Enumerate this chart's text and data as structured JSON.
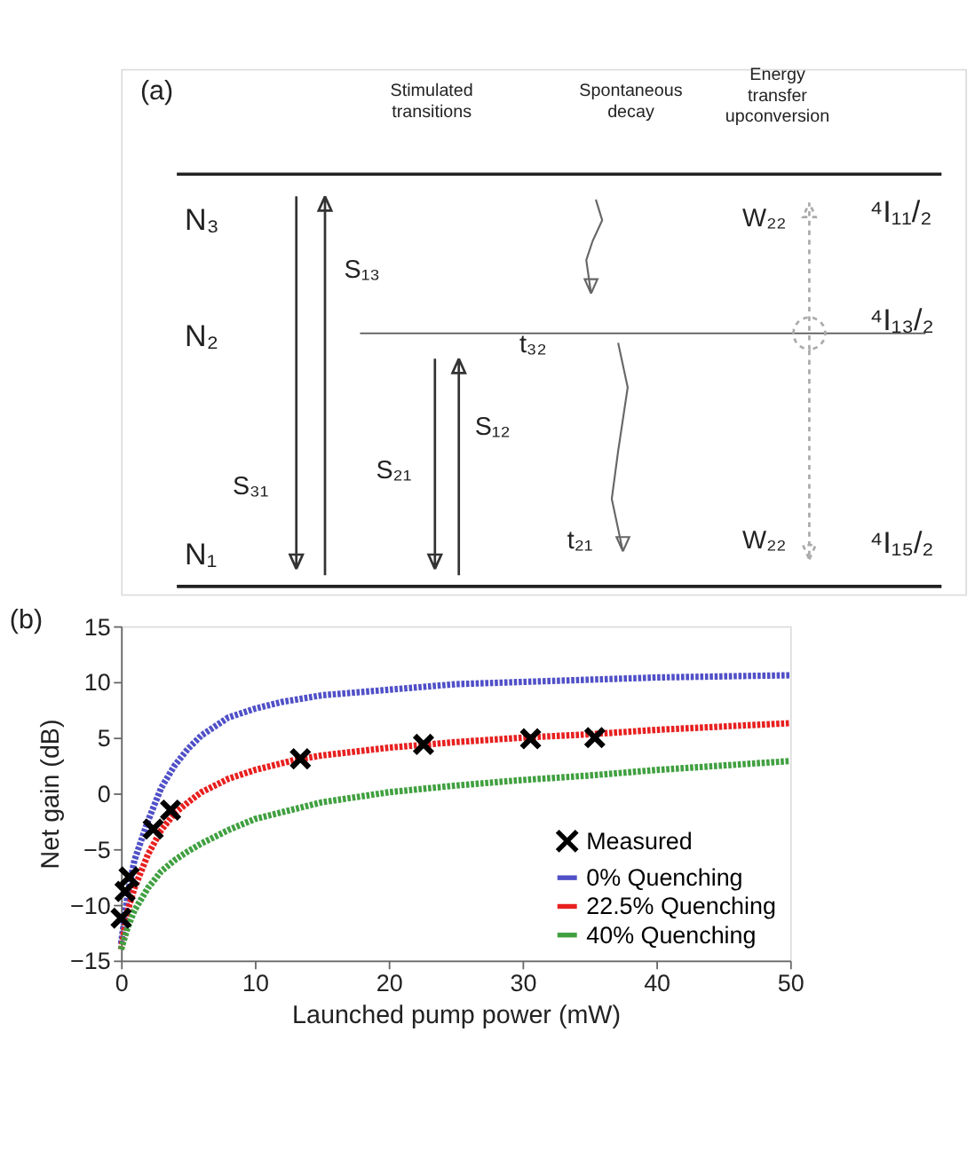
{
  "chart_data": [
    {
      "type": "other",
      "annotations": [
        "(a)",
        "Stimulated transitions",
        "Spontaneous decay",
        "Energy transfer upconversion",
        "N₃",
        "N₂",
        "N₁",
        "S₁₃",
        "S₃₁",
        "S₁₂",
        "S₂₁",
        "t₃₂",
        "t₂₁",
        "W₂₂",
        "W₂₂",
        "⁴I₁₁/₂",
        "⁴I₁₃/₂",
        "⁴I₁₅/₂"
      ]
    },
    {
      "type": "line",
      "xlabel": "Launched pump power (mW)",
      "ylabel": "Net gain (dB)",
      "annotations": [
        "(b)"
      ],
      "xlim": [
        0,
        50
      ],
      "ylim": [
        -15,
        15
      ],
      "xticks": [
        0,
        10,
        20,
        30,
        40,
        50
      ],
      "yticks": [
        -15,
        -10,
        -5,
        0,
        5,
        10,
        15
      ],
      "legend": "bottom right",
      "grid": false,
      "line_style": "dotted",
      "series": [
        {
          "name": "Measured",
          "type": "scatter",
          "marker": "cross",
          "color": "#000000",
          "x": [
            0,
            0.3,
            0.6,
            2.4,
            3.7,
            13.4,
            22.6,
            30.6,
            35.4
          ],
          "values": [
            -11.2,
            -8.8,
            -7.5,
            -3.2,
            -1.5,
            3.1,
            4.4,
            4.9,
            5.0
          ]
        },
        {
          "name": "0% Quenching",
          "color": "#5050c8",
          "x": [
            0,
            0.5,
            1,
            2,
            3,
            4,
            5,
            6,
            8,
            10,
            12,
            15,
            20,
            25,
            30,
            35,
            40,
            45,
            50
          ],
          "values": [
            -13.5,
            -9,
            -6,
            -2.5,
            0.5,
            2.5,
            4,
            5.2,
            6.8,
            7.6,
            8.2,
            8.8,
            9.3,
            9.8,
            10,
            10.2,
            10.4,
            10.5,
            10.6
          ]
        },
        {
          "name": "22.5% Quenching",
          "color": "#e82020",
          "x": [
            0,
            0.5,
            1,
            2,
            3,
            4,
            5,
            6,
            8,
            10,
            13,
            15,
            20,
            25,
            30,
            35,
            40,
            45,
            50
          ],
          "values": [
            -14,
            -10.5,
            -8.5,
            -5.5,
            -3.3,
            -1.8,
            -0.8,
            0.1,
            1.3,
            2.1,
            3,
            3.4,
            4.1,
            4.6,
            5,
            5.3,
            5.7,
            6,
            6.3
          ]
        },
        {
          "name": "40% Quenching",
          "color": "#40a040",
          "x": [
            0,
            0.5,
            1,
            2,
            3,
            4,
            5,
            6,
            8,
            10,
            15,
            20,
            25,
            30,
            35,
            40,
            45,
            50
          ],
          "values": [
            -14,
            -12,
            -10.5,
            -8.5,
            -7,
            -6,
            -5.2,
            -4.5,
            -3.3,
            -2.3,
            -0.8,
            0.1,
            0.7,
            1.2,
            1.6,
            2.1,
            2.5,
            2.9
          ]
        }
      ]
    }
  ]
}
